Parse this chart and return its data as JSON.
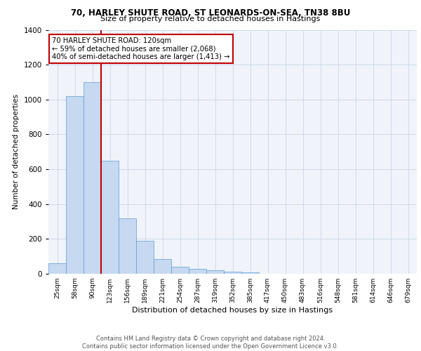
{
  "title1": "70, HARLEY SHUTE ROAD, ST LEONARDS-ON-SEA, TN38 8BU",
  "title2": "Size of property relative to detached houses in Hastings",
  "xlabel": "Distribution of detached houses by size in Hastings",
  "ylabel": "Number of detached properties",
  "categories": [
    "25sqm",
    "58sqm",
    "90sqm",
    "123sqm",
    "156sqm",
    "189sqm",
    "221sqm",
    "254sqm",
    "287sqm",
    "319sqm",
    "352sqm",
    "385sqm",
    "417sqm",
    "450sqm",
    "483sqm",
    "516sqm",
    "548sqm",
    "581sqm",
    "614sqm",
    "646sqm",
    "679sqm"
  ],
  "values": [
    60,
    1020,
    1100,
    648,
    320,
    190,
    85,
    40,
    28,
    22,
    14,
    8,
    0,
    0,
    0,
    0,
    0,
    0,
    0,
    0,
    0
  ],
  "bar_color": "#c6d9f0",
  "bar_edge_color": "#5b9bd5",
  "vline_color": "#c00000",
  "annotation_text": "70 HARLEY SHUTE ROAD: 120sqm\n← 59% of detached houses are smaller (2,068)\n40% of semi-detached houses are larger (1,413) →",
  "annotation_box_color": "#c00000",
  "grid_color": "#d0d8e8",
  "background_color": "#f0f4fa",
  "footer_text": "Contains HM Land Registry data © Crown copyright and database right 2024.\nContains public sector information licensed under the Open Government Licence v3.0.",
  "ylim": [
    0,
    1400
  ],
  "yticks": [
    0,
    200,
    400,
    600,
    800,
    1000,
    1200,
    1400
  ]
}
